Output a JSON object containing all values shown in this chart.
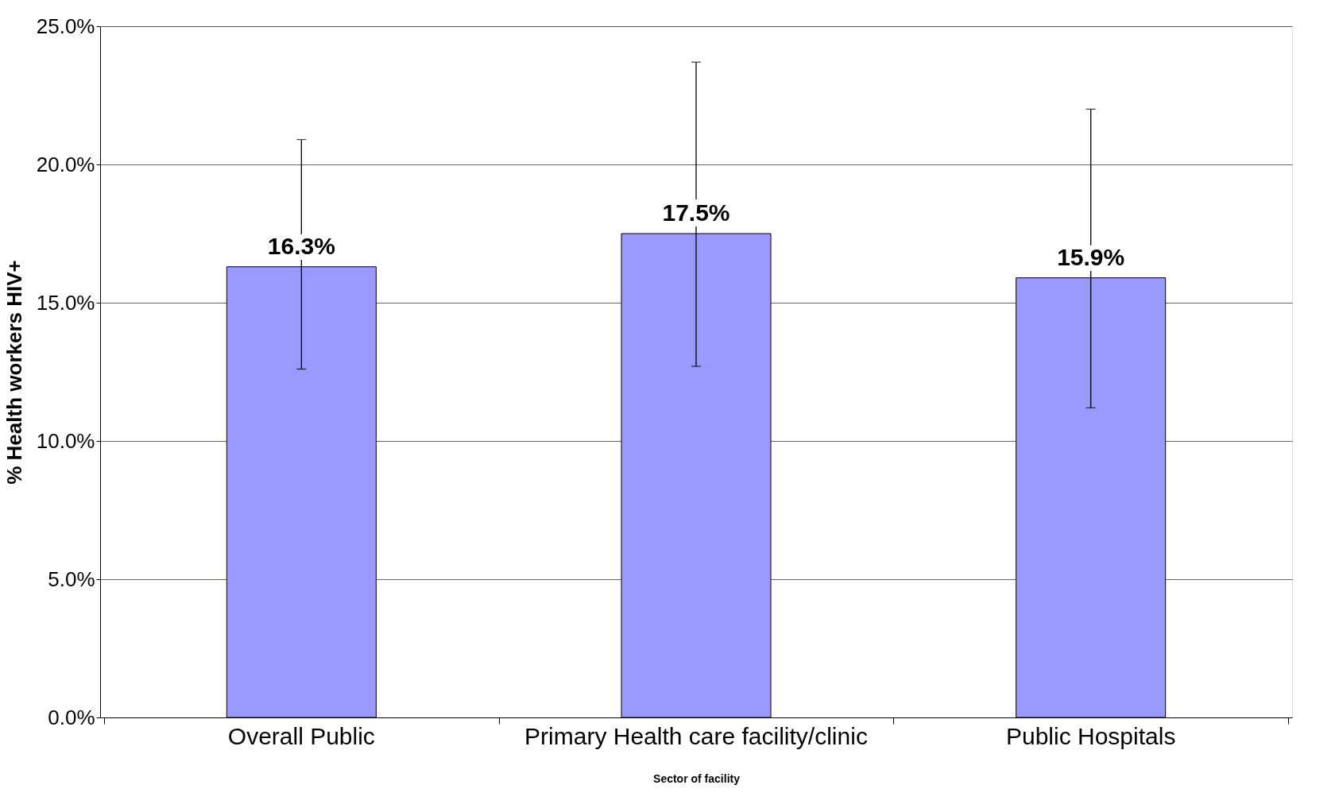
{
  "chart_data": {
    "type": "bar",
    "xlabel": "Sector of facility",
    "ylabel": "% Health workers HIV+",
    "categories": [
      "Overall Public",
      "Primary Health care facility/clinic",
      "Public Hospitals"
    ],
    "values": [
      16.3,
      17.5,
      15.9
    ],
    "color": "#9999ff",
    "errors": [
      [
        12.6,
        20.9
      ],
      [
        12.7,
        23.7
      ],
      [
        11.2,
        22.0
      ]
    ],
    "value_labels": [
      "16.3%",
      "17.5%",
      "15.9%"
    ],
    "ylim": [
      0,
      25
    ],
    "yticks": [
      {
        "value": 0,
        "label": "0.0%"
      },
      {
        "value": 5,
        "label": "5.0%"
      },
      {
        "value": 10,
        "label": "10.0%"
      },
      {
        "value": 15,
        "label": "15.0%"
      },
      {
        "value": 20,
        "label": "20.0%"
      },
      {
        "value": 25,
        "label": "25.0%"
      }
    ],
    "grid": "y"
  }
}
